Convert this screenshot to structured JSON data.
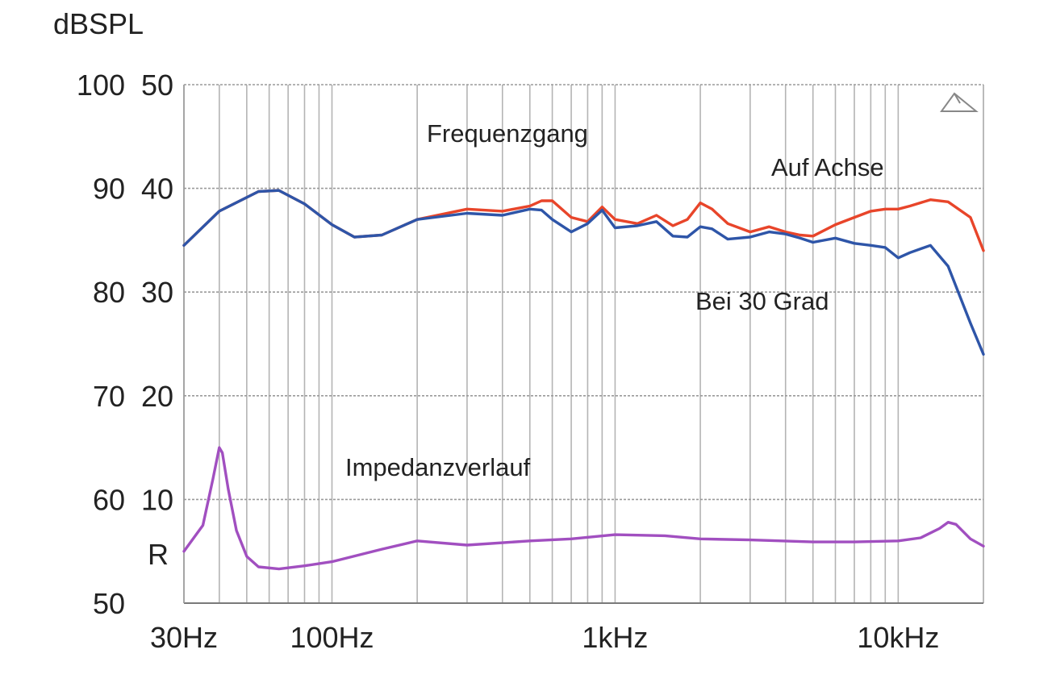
{
  "chart_data": {
    "type": "line",
    "xscale": "log",
    "xlim": [
      30,
      20000
    ],
    "ylim": [
      50,
      100
    ],
    "y_right_lim": [
      0,
      50
    ],
    "ylabel": "dBSPL",
    "impedance_axis_label": "R",
    "x_ticks": [
      {
        "value": 30,
        "label": "30Hz"
      },
      {
        "value": 100,
        "label": "100Hz"
      },
      {
        "value": 1000,
        "label": "1kHz"
      },
      {
        "value": 10000,
        "label": "10kHz"
      }
    ],
    "y_ticks": [
      {
        "value": 100,
        "label": "100",
        "label2": "50"
      },
      {
        "value": 90,
        "label": "90",
        "label2": "40"
      },
      {
        "value": 80,
        "label": "80",
        "label2": "30"
      },
      {
        "value": 70,
        "label": "70",
        "label2": "20"
      },
      {
        "value": 60,
        "label": "60",
        "label2": "10"
      },
      {
        "value": 50,
        "label": "50",
        "label2": ""
      }
    ],
    "grid": true,
    "annotations": {
      "frequenzgang": "Frequenzgang",
      "auf_achse": "Auf Achse",
      "bei_30_grad": "Bei 30 Grad",
      "impedanz": "Impedanzverlauf"
    },
    "series": [
      {
        "key": "auf_achse",
        "color": "#e8452a",
        "x": [
          30,
          40,
          55,
          65,
          80,
          100,
          120,
          150,
          200,
          300,
          400,
          500,
          550,
          600,
          700,
          800,
          900,
          1000,
          1200,
          1400,
          1600,
          1800,
          2000,
          2200,
          2500,
          3000,
          3500,
          4000,
          4500,
          5000,
          6000,
          7000,
          8000,
          9000,
          10000,
          11000,
          13000,
          15000,
          18000,
          20000
        ],
        "y": [
          84.5,
          87.8,
          89.7,
          89.8,
          88.5,
          86.5,
          85.3,
          85.5,
          87.0,
          88.0,
          87.8,
          88.3,
          88.8,
          88.8,
          87.2,
          86.8,
          88.2,
          87.0,
          86.6,
          87.4,
          86.4,
          87.0,
          88.6,
          88.0,
          86.6,
          85.8,
          86.3,
          85.8,
          85.5,
          85.4,
          86.5,
          87.2,
          87.8,
          88.0,
          88.0,
          88.3,
          88.9,
          88.7,
          87.2,
          84.0
        ]
      },
      {
        "key": "bei_30_grad",
        "color": "#2e55a8",
        "x": [
          30,
          40,
          55,
          65,
          80,
          100,
          120,
          150,
          200,
          300,
          400,
          500,
          550,
          600,
          700,
          800,
          900,
          1000,
          1200,
          1400,
          1600,
          1800,
          2000,
          2200,
          2500,
          3000,
          3500,
          4000,
          4500,
          5000,
          6000,
          7000,
          8000,
          9000,
          10000,
          11000,
          13000,
          15000,
          18000,
          20000
        ],
        "y": [
          84.5,
          87.8,
          89.7,
          89.8,
          88.5,
          86.5,
          85.3,
          85.5,
          87.0,
          87.6,
          87.4,
          88.0,
          87.9,
          87.0,
          85.8,
          86.6,
          87.9,
          86.2,
          86.4,
          86.8,
          85.4,
          85.3,
          86.3,
          86.1,
          85.1,
          85.3,
          85.8,
          85.6,
          85.2,
          84.8,
          85.2,
          84.7,
          84.5,
          84.3,
          83.3,
          83.8,
          84.5,
          82.5,
          77.0,
          74.0
        ]
      },
      {
        "key": "impedanz",
        "color": "#a14fc0",
        "x": [
          30,
          35,
          38,
          40,
          41,
          43,
          46,
          50,
          55,
          65,
          80,
          100,
          150,
          200,
          300,
          500,
          700,
          1000,
          1500,
          2000,
          3000,
          5000,
          7000,
          10000,
          12000,
          14000,
          15000,
          16000,
          18000,
          20000
        ],
        "y": [
          55.0,
          57.5,
          62.0,
          65.0,
          64.5,
          61.0,
          57.0,
          54.5,
          53.5,
          53.3,
          53.6,
          54.0,
          55.2,
          56.0,
          55.6,
          56.0,
          56.2,
          56.6,
          56.5,
          56.2,
          56.1,
          55.9,
          55.9,
          56.0,
          56.3,
          57.2,
          57.8,
          57.6,
          56.2,
          55.5
        ]
      }
    ]
  }
}
